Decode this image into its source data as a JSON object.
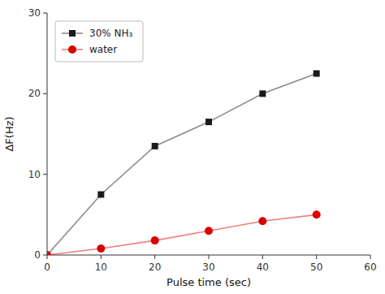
{
  "chart_data": {
    "type": "line",
    "x": [
      0,
      10,
      20,
      30,
      40,
      50
    ],
    "xlabel": "Pulse time (sec)",
    "ylabel": "ΔF(Hz)",
    "xlim": [
      0,
      60
    ],
    "ylim": [
      0,
      30
    ],
    "xticks": [
      0,
      10,
      20,
      30,
      40,
      50,
      60
    ],
    "yticks": [
      0,
      10,
      20,
      30
    ],
    "grid": false,
    "legend": "upper left",
    "series": [
      {
        "name": "30% NH₃",
        "color": "#1a1a1a",
        "marker": "square",
        "values": [
          0,
          7.5,
          13.5,
          16.5,
          20.0,
          22.5
        ]
      },
      {
        "name": "water",
        "color": "#dd0000",
        "marker": "circle",
        "values": [
          0,
          0.8,
          1.8,
          3.0,
          4.2,
          5.0
        ]
      }
    ]
  }
}
